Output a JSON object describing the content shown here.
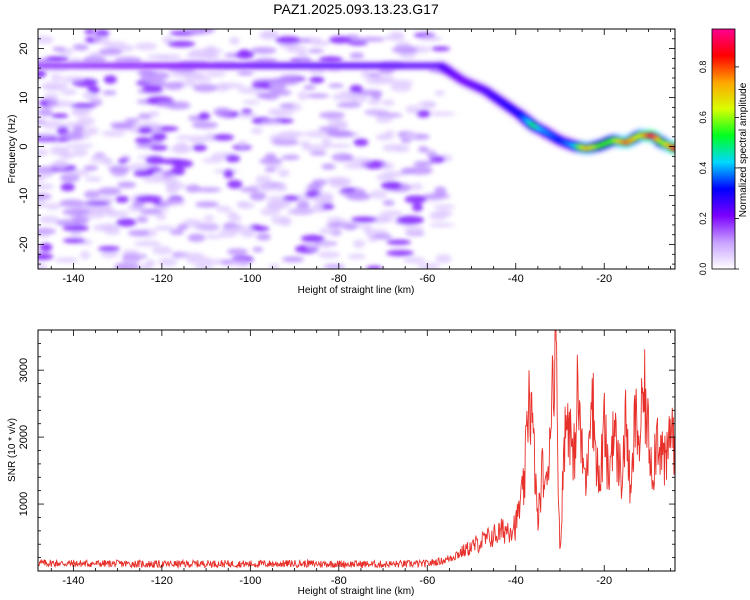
{
  "title": "PAZ1.2025.093.13.23.G17",
  "chart_data": [
    {
      "type": "heatmap",
      "xlabel": "Height of straight line (km)",
      "ylabel": "Frequency (Hz)",
      "xlim": [
        -148,
        -4
      ],
      "ylim": [
        -25,
        24
      ],
      "xticks": [
        -140,
        -120,
        -100,
        -80,
        -60,
        -40,
        -20
      ],
      "yticks": [
        -20,
        -10,
        0,
        10,
        20
      ],
      "noise_region_x": [
        -148,
        -57
      ],
      "noise_level": 0.1,
      "ridge": {
        "x": [
          -148,
          -130,
          -110,
          -90,
          -70,
          -57,
          -52,
          -47,
          -43,
          -39,
          -36,
          -34,
          -30,
          -27,
          -24,
          -21,
          -18,
          -15,
          -12,
          -9,
          -7,
          -4
        ],
        "y": [
          16.5,
          16.5,
          16.5,
          16.5,
          16.5,
          16.5,
          13.5,
          11.5,
          9,
          6.5,
          4.2,
          3.3,
          1.2,
          0.2,
          -0.4,
          0.2,
          1.3,
          0.8,
          2.3,
          2.2,
          0.8,
          -0.4
        ],
        "amplitude": [
          0.18,
          0.2,
          0.22,
          0.25,
          0.25,
          0.25,
          0.22,
          0.25,
          0.28,
          0.3,
          0.5,
          0.4,
          0.32,
          0.4,
          0.72,
          0.55,
          0.55,
          0.8,
          0.6,
          0.93,
          0.55,
          0.85
        ]
      },
      "colorbar": {
        "label": "Normalized spectral amplitude",
        "range": [
          0,
          0.95
        ],
        "ticks": [
          0.0,
          0.2,
          0.4,
          0.6,
          0.8
        ],
        "tick_labels": [
          "0.0",
          "0.2",
          "0.4",
          "0.6",
          "0.8"
        ],
        "colors": [
          "#ffffff",
          "#c8a2ff",
          "#7b00ff",
          "#0000ff",
          "#00d8ff",
          "#00ff20",
          "#d8ff00",
          "#ffa500",
          "#ff0000",
          "#ff0090"
        ]
      },
      "grid": false
    },
    {
      "type": "line",
      "xlabel": "Height of straight line (km)",
      "ylabel": "SNR (10 * v/v)",
      "xlim": [
        -148,
        -4
      ],
      "ylim": [
        0,
        3600
      ],
      "xticks": [
        -140,
        -120,
        -100,
        -80,
        -60,
        -40,
        -20
      ],
      "yticks": [
        1000,
        2000,
        3000
      ],
      "color": "#e8302a",
      "x": [
        -148,
        -140,
        -130,
        -120,
        -110,
        -100,
        -90,
        -80,
        -70,
        -60,
        -56,
        -52,
        -48,
        -44,
        -40,
        -38,
        -37,
        -36,
        -35,
        -34,
        -33,
        -32,
        -31,
        -30,
        -29,
        -28,
        -27,
        -26,
        -25,
        -24,
        -23,
        -22,
        -21,
        -20,
        -19,
        -18,
        -17,
        -16,
        -15,
        -14,
        -13,
        -12,
        -11,
        -10,
        -9,
        -8,
        -7,
        -6,
        -5,
        -4
      ],
      "y": [
        120,
        110,
        110,
        100,
        110,
        105,
        110,
        105,
        100,
        110,
        160,
        290,
        430,
        560,
        700,
        1300,
        2800,
        1900,
        700,
        1500,
        1200,
        2500,
        3600,
        200,
        2000,
        2400,
        1500,
        2700,
        1700,
        1300,
        2900,
        1900,
        1200,
        2200,
        1300,
        2200,
        1700,
        1400,
        2300,
        1000,
        2300,
        1900,
        2700,
        2000,
        1500,
        2100,
        1800,
        1500,
        2200,
        1900
      ],
      "grid": false
    }
  ]
}
